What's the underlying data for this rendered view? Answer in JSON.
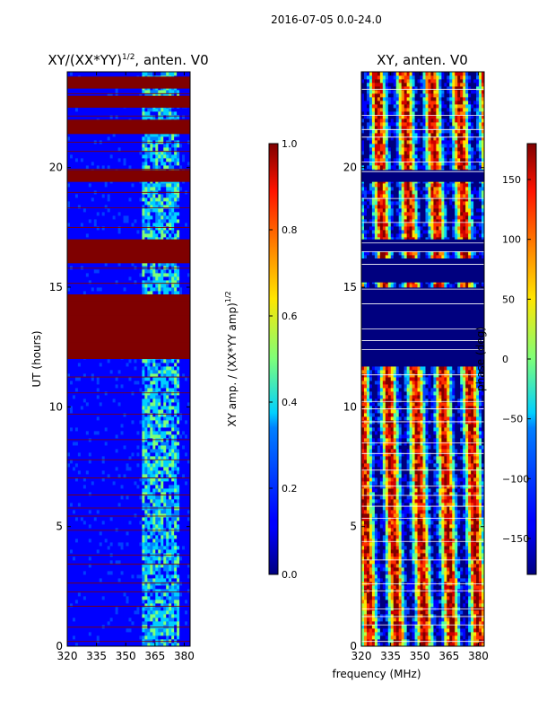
{
  "figure_title": "2016-07-05 0.0-24.0",
  "chart_data": [
    {
      "type": "heatmap",
      "title_main": "XY/(XX*YY)",
      "title_sup": "1/2",
      "title_suffix": ", anten. V0",
      "xlabel": "",
      "ylabel": "UT (hours)",
      "xlim": [
        320,
        383
      ],
      "ylim": [
        0,
        24
      ],
      "x_ticks": [
        320,
        335,
        350,
        365,
        380
      ],
      "y_ticks": [
        0,
        5,
        10,
        15,
        20
      ],
      "colorbar": {
        "label_main": "XY amp. / (XX*YY amp)",
        "label_sup": "1/2",
        "range": [
          0.0,
          1.0
        ],
        "ticks": [
          "0.0",
          "0.2",
          "0.4",
          "0.6",
          "0.8",
          "1.0"
        ],
        "tick_values": [
          0,
          0.2,
          0.4,
          0.6,
          0.8,
          1.0
        ]
      },
      "saturated_bands_hours": [
        [
          12.0,
          14.7
        ],
        [
          16.0,
          17.0
        ],
        [
          19.4,
          19.9
        ],
        [
          21.4,
          22.0
        ],
        [
          22.5,
          23.0
        ],
        [
          23.3,
          23.8
        ]
      ],
      "bright_column_range_mhz": [
        359,
        378
      ]
    },
    {
      "type": "heatmap",
      "title": "XY, anten. V0",
      "xlabel": "frequency (MHz)",
      "ylabel": "",
      "xlim": [
        320,
        383
      ],
      "ylim": [
        0,
        24
      ],
      "x_ticks": [
        320,
        335,
        350,
        365,
        380
      ],
      "y_ticks": [
        0,
        5,
        10,
        15,
        20
      ],
      "colorbar": {
        "label": "phase (deg)",
        "range": [
          -180,
          180
        ],
        "ticks": [
          "−150",
          "−100",
          "−50",
          "0",
          "50",
          "100",
          "150"
        ],
        "tick_values": [
          -150,
          -100,
          -50,
          0,
          50,
          100,
          150
        ]
      },
      "saturated_bands_hours": [
        [
          12.0,
          14.7
        ],
        [
          15.2,
          16.2
        ],
        [
          16.5,
          17.0
        ],
        [
          19.4,
          19.9
        ]
      ]
    }
  ]
}
